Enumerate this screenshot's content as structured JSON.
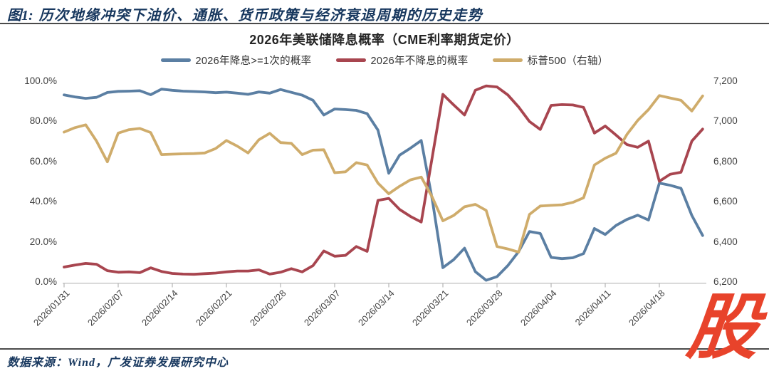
{
  "header": {
    "figure_label": "图1:",
    "title": "历次地缘冲突下油价、通胀、货币政策与经济衰退周期的历史走势",
    "color": "#17375E"
  },
  "chart_data": {
    "type": "line",
    "title": "2026年美联储降息概率（CME利率期货定价）",
    "legend_position": "top",
    "grid": false,
    "x_tick_labels": [
      "2026/01/31",
      "2026/02/07",
      "2026/02/14",
      "2026/02/21",
      "2026/02/28",
      "2026/03/07",
      "2026/03/14",
      "2026/03/21",
      "2026/03/28",
      "2026/04/04",
      "2026/04/11",
      "2026/04/18"
    ],
    "points_per_tick": 5,
    "left_axis": {
      "min": 0,
      "max": 100,
      "tick_labels": [
        "100.0%",
        "80.0%",
        "60.0%",
        "40.0%",
        "20.0%",
        "0.0%"
      ]
    },
    "right_axis": {
      "min": 6200,
      "max": 7200,
      "tick_labels": [
        "7,200",
        "7,000",
        "6,800",
        "6,600",
        "6,400",
        "6,200"
      ]
    },
    "series": [
      {
        "name": "2026年降息>=1次的概率",
        "axis": "left",
        "color": "#5B7FA3",
        "values": [
          93.5,
          92.5,
          91.8,
          92.3,
          94.7,
          95.3,
          95.4,
          95.6,
          93.6,
          96.4,
          95.8,
          95.4,
          95.2,
          95.0,
          94.6,
          94.9,
          94.4,
          93.8,
          95.0,
          94.4,
          96.2,
          94.8,
          93.4,
          90.8,
          83.5,
          86.5,
          86.2,
          85.8,
          84.2,
          76.0,
          54.5,
          63.5,
          67.0,
          70.8,
          42.0,
          7.5,
          11.5,
          17.2,
          5.5,
          1.2,
          3.0,
          8.5,
          15.5,
          25.5,
          24.5,
          12.6,
          12.0,
          12.4,
          14.5,
          27.0,
          24.0,
          28.5,
          31.5,
          33.6,
          31.2,
          49.6,
          48.5,
          47.0,
          33.5,
          23.5
        ]
      },
      {
        "name": "2026年不降息的概率",
        "axis": "left",
        "color": "#A8454F",
        "values": [
          7.8,
          8.8,
          9.6,
          9.2,
          6.0,
          5.2,
          5.4,
          5.0,
          7.4,
          5.6,
          4.6,
          4.3,
          4.2,
          4.5,
          4.8,
          5.4,
          5.8,
          5.8,
          6.4,
          4.3,
          5.2,
          7.0,
          5.4,
          8.5,
          15.8,
          13.2,
          13.6,
          18.0,
          15.6,
          41.0,
          42.0,
          36.5,
          33.0,
          30.2,
          62.0,
          93.8,
          88.5,
          83.5,
          95.8,
          98.0,
          97.5,
          93.5,
          87.5,
          80.3,
          76.3,
          88.3,
          88.7,
          88.5,
          87.3,
          74.5,
          78.0,
          73.5,
          68.8,
          67.4,
          70.5,
          50.5,
          54.0,
          55.0,
          70.5,
          76.5
        ]
      },
      {
        "name": "标普500（右轴）",
        "axis": "right",
        "color": "#CFAC6B",
        "values": [
          6950,
          6972,
          6986,
          6905,
          6802,
          6945,
          6962,
          6968,
          6948,
          6838,
          6840,
          6842,
          6843,
          6846,
          6868,
          6908,
          6880,
          6846,
          6912,
          6944,
          6898,
          6894,
          6838,
          6860,
          6862,
          6748,
          6752,
          6798,
          6786,
          6696,
          6643,
          6680,
          6712,
          6726,
          6628,
          6508,
          6535,
          6578,
          6590,
          6560,
          6380,
          6368,
          6352,
          6540,
          6582,
          6585,
          6588,
          6600,
          6623,
          6786,
          6820,
          6845,
          6938,
          7008,
          7062,
          7132,
          7120,
          7108,
          7055,
          7130
        ]
      }
    ]
  },
  "footer": {
    "source": "数据来源：Wind，广发证券发展研究中心",
    "logo_char": "股",
    "logo_color": "#E8432B"
  }
}
